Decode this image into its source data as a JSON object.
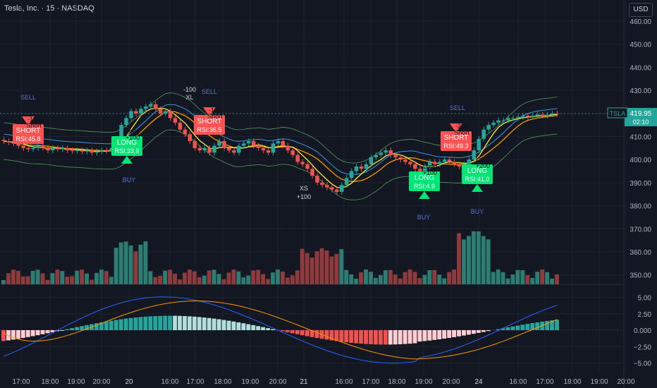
{
  "header": {
    "title": "Tesla, Inc. · 15 · NASDAQ",
    "currency_button": "USD"
  },
  "last_price": {
    "symbol": "TSLA",
    "price": "419.95",
    "countdown": "02:10"
  },
  "colors": {
    "bg": "#131722",
    "up": "#26a69a",
    "down": "#ef5350",
    "upVol": "#2e7d73",
    "downVol": "#8f3b3d",
    "macd": "#2962ff",
    "signal": "#ff9800",
    "ema_fast": "#ffeb3b",
    "ema_slow": "#ff9800",
    "band": "#66bb6a",
    "mid": "#42a5f5",
    "signalBox_buy": "#00e676",
    "signalBox_sell": "#ff5252"
  },
  "chart_data": [
    {
      "type": "candlestick",
      "title": "Tesla, Inc. · 15 · NASDAQ",
      "y_ticks": [
        "460.00",
        "450.00",
        "440.00",
        "430.00",
        "420.00",
        "410.00",
        "400.00",
        "390.00",
        "380.00",
        "370.00",
        "360.00",
        "350.00"
      ],
      "ylim": [
        345,
        463
      ],
      "x_ticks": [
        "17:00",
        "18:00",
        "19:00",
        "20:00",
        "20",
        "16:00",
        "17:00",
        "18:00",
        "19:00",
        "20:00",
        "21",
        "16:00",
        "17:00",
        "18:00",
        "19:00",
        "20:00",
        "24",
        "16:00",
        "17:00",
        "18:00",
        "19:00",
        "20:00"
      ],
      "close": [
        408,
        407.5,
        407,
        406,
        405,
        404.5,
        405,
        406,
        405,
        404,
        405,
        404.5,
        405,
        404,
        403.8,
        404,
        403.5,
        404,
        403,
        403.5,
        404,
        403.8,
        405,
        407,
        415,
        418,
        421,
        420,
        422,
        423,
        424,
        422,
        420,
        421,
        418,
        416,
        413,
        411,
        408,
        405,
        404,
        405,
        403,
        406,
        408,
        405,
        404,
        403,
        406,
        407,
        408,
        406,
        405,
        404,
        403,
        407,
        408,
        406,
        404,
        402,
        399,
        398,
        396,
        393,
        390,
        389,
        388,
        387,
        386,
        389,
        392,
        395,
        397,
        396,
        398,
        401,
        402,
        403,
        404,
        402,
        401,
        400,
        399,
        398,
        396,
        395,
        397,
        399,
        398,
        399,
        400,
        399,
        398,
        397,
        398,
        400,
        404,
        409,
        413,
        415,
        416,
        417,
        417,
        418,
        418,
        418.5,
        419,
        418.5,
        419,
        419.5,
        419,
        419.5,
        420,
        419.95
      ],
      "volume_panel": "bars below price, overlaps 345-375 range",
      "signals": [
        {
          "label": "SHORT RSI:45.8",
          "type": "sell",
          "text_top": "-100 Short"
        },
        {
          "label": "LONG RSI:33.9",
          "type": "buy",
          "text_top": "Long +100"
        },
        {
          "label": "SHORT RSI:36.5",
          "type": "sell",
          "text_top": "-100 Short"
        },
        {
          "label": "LONG RSI:4.9",
          "type": "buy",
          "text_top": "Long +100"
        },
        {
          "label": "SHORT RSI:49.3",
          "type": "sell",
          "text_top": "-200 Short"
        },
        {
          "label": "LONG RSI:41.0",
          "type": "buy",
          "text_top": "Long +200"
        }
      ],
      "annotations": [
        "SELL",
        "BUY",
        "SELL",
        "-100",
        "XL",
        "XS",
        "+100",
        "BUY",
        "BUY",
        "SELL"
      ]
    },
    {
      "type": "histogram",
      "title": "",
      "y_ticks": [
        "5.00",
        "2.50",
        "0.000",
        "−2.50",
        "−5.00"
      ],
      "ylim": [
        -6,
        6
      ]
    }
  ]
}
